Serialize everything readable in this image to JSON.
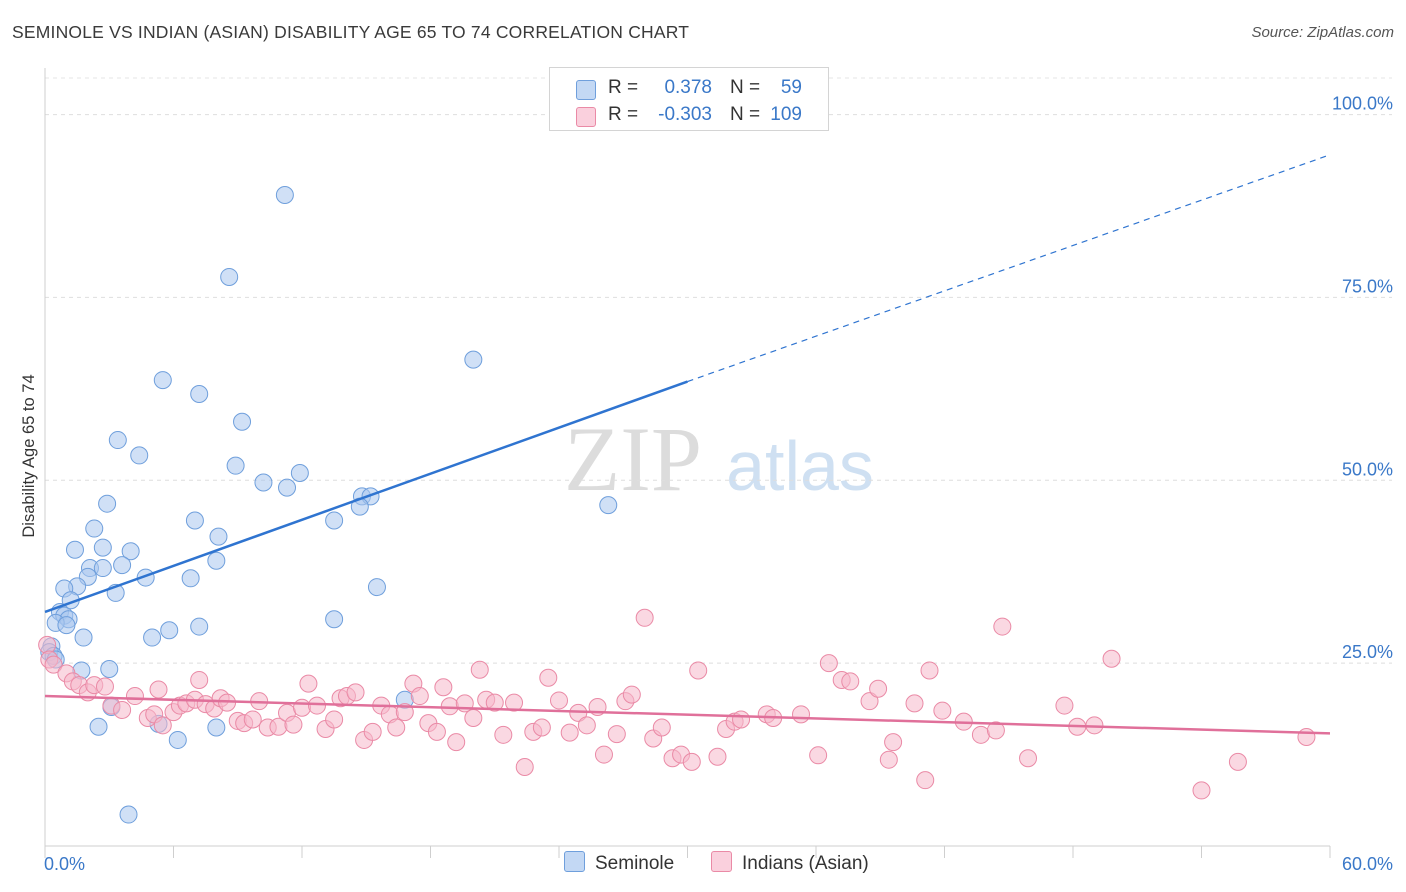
{
  "title": "SEMINOLE VS INDIAN (ASIAN) DISABILITY AGE 65 TO 74 CORRELATION CHART",
  "source": "Source: ZipAtlas.com",
  "watermark": {
    "zip": "ZIP",
    "atlas": "atlas"
  },
  "legend": {
    "r_label": "R =",
    "n_label": "N =",
    "rows": [
      {
        "r": "0.378",
        "n": "59",
        "color": "#a9c7ee"
      },
      {
        "r": "-0.303",
        "n": "109",
        "color": "#f5b8cb"
      }
    ]
  },
  "bottom_legend": [
    "Seminole",
    "Indians (Asian)"
  ],
  "chart_data": {
    "type": "scatter",
    "title": "SEMINOLE VS INDIAN (ASIAN) DISABILITY AGE 65 TO 74 CORRELATION CHART",
    "xlabel": "",
    "ylabel": "Disability Age 65 to 74",
    "xlim": [
      0,
      60
    ],
    "ylim": [
      0,
      105
    ],
    "x_tick_labels": [
      "0.0%",
      "60.0%"
    ],
    "y_tick_labels": [
      "25.0%",
      "50.0%",
      "75.0%",
      "100.0%"
    ],
    "y_ticks": [
      25,
      50,
      75,
      100
    ],
    "grid": "horizontal dashed",
    "legend_position": "top-center",
    "series": [
      {
        "name": "Seminole",
        "color": "#6f9fdc",
        "fill": "#a9c7ee",
        "R": 0.378,
        "N": 59,
        "trend": {
          "x0": 0,
          "y0": 32.0,
          "x1": 30,
          "y1": 63.5,
          "dash_to_x": 60,
          "dash_to_y": 94.5,
          "color": "#2f74d0"
        },
        "points": [
          [
            11.2,
            89.0
          ],
          [
            8.6,
            77.8
          ],
          [
            20.0,
            66.5
          ],
          [
            5.5,
            63.7
          ],
          [
            7.2,
            61.8
          ],
          [
            9.2,
            58.0
          ],
          [
            3.4,
            55.5
          ],
          [
            4.4,
            53.4
          ],
          [
            8.9,
            52.0
          ],
          [
            10.2,
            49.7
          ],
          [
            11.3,
            49.0
          ],
          [
            11.9,
            51.0
          ],
          [
            14.8,
            47.8
          ],
          [
            15.2,
            47.8
          ],
          [
            14.7,
            46.4
          ],
          [
            26.3,
            46.6
          ],
          [
            2.9,
            46.8
          ],
          [
            7.0,
            44.5
          ],
          [
            13.5,
            44.5
          ],
          [
            2.3,
            43.4
          ],
          [
            8.1,
            42.3
          ],
          [
            1.4,
            40.5
          ],
          [
            4.0,
            40.3
          ],
          [
            2.7,
            40.8
          ],
          [
            8.0,
            39.0
          ],
          [
            3.6,
            38.4
          ],
          [
            2.1,
            38.0
          ],
          [
            2.7,
            38.0
          ],
          [
            2.0,
            36.8
          ],
          [
            4.7,
            36.7
          ],
          [
            6.8,
            36.6
          ],
          [
            1.5,
            35.5
          ],
          [
            0.9,
            35.2
          ],
          [
            15.5,
            35.4
          ],
          [
            3.3,
            34.6
          ],
          [
            1.2,
            33.6
          ],
          [
            0.7,
            32.0
          ],
          [
            0.9,
            31.5
          ],
          [
            1.1,
            31.0
          ],
          [
            0.5,
            30.5
          ],
          [
            1.0,
            30.2
          ],
          [
            13.5,
            31.0
          ],
          [
            7.2,
            30.0
          ],
          [
            5.8,
            29.5
          ],
          [
            5.0,
            28.5
          ],
          [
            1.8,
            28.5
          ],
          [
            0.3,
            27.3
          ],
          [
            0.2,
            26.5
          ],
          [
            0.4,
            26.0
          ],
          [
            0.5,
            25.5
          ],
          [
            1.7,
            24.0
          ],
          [
            3.0,
            24.2
          ],
          [
            16.8,
            20.0
          ],
          [
            3.1,
            19.0
          ],
          [
            2.5,
            16.3
          ],
          [
            5.3,
            16.7
          ],
          [
            8.0,
            16.2
          ],
          [
            6.2,
            14.5
          ],
          [
            3.9,
            4.3
          ]
        ]
      },
      {
        "name": "Indians (Asian)",
        "color": "#ea8aa6",
        "fill": "#f5b8cb",
        "R": -0.303,
        "N": 109,
        "trend": {
          "x0": 0,
          "y0": 20.5,
          "x1": 60,
          "y1": 15.4,
          "color": "#e0709a"
        },
        "points": [
          [
            0.1,
            27.5
          ],
          [
            0.2,
            25.5
          ],
          [
            0.4,
            24.8
          ],
          [
            1.0,
            23.6
          ],
          [
            1.3,
            22.5
          ],
          [
            1.6,
            22.0
          ],
          [
            2.0,
            21.0
          ],
          [
            2.3,
            22.0
          ],
          [
            2.8,
            21.8
          ],
          [
            3.1,
            19.2
          ],
          [
            3.6,
            18.6
          ],
          [
            4.2,
            20.5
          ],
          [
            4.8,
            17.5
          ],
          [
            5.1,
            18.0
          ],
          [
            5.3,
            21.4
          ],
          [
            5.5,
            16.5
          ],
          [
            6.0,
            18.3
          ],
          [
            6.3,
            19.2
          ],
          [
            6.6,
            19.5
          ],
          [
            7.0,
            20.0
          ],
          [
            7.2,
            22.7
          ],
          [
            7.5,
            19.4
          ],
          [
            7.9,
            18.8
          ],
          [
            8.2,
            20.2
          ],
          [
            8.5,
            19.6
          ],
          [
            9.0,
            17.1
          ],
          [
            9.3,
            16.8
          ],
          [
            9.7,
            17.3
          ],
          [
            10.0,
            19.8
          ],
          [
            10.4,
            16.2
          ],
          [
            10.9,
            16.3
          ],
          [
            11.3,
            18.2
          ],
          [
            11.6,
            16.6
          ],
          [
            12.0,
            18.9
          ],
          [
            12.3,
            22.2
          ],
          [
            12.7,
            19.2
          ],
          [
            13.1,
            16.0
          ],
          [
            13.5,
            17.3
          ],
          [
            13.8,
            20.2
          ],
          [
            14.1,
            20.5
          ],
          [
            14.5,
            21.0
          ],
          [
            14.9,
            14.5
          ],
          [
            15.3,
            15.6
          ],
          [
            15.7,
            19.2
          ],
          [
            16.1,
            18.0
          ],
          [
            16.4,
            16.2
          ],
          [
            16.8,
            18.3
          ],
          [
            17.2,
            22.2
          ],
          [
            17.5,
            20.5
          ],
          [
            17.9,
            16.8
          ],
          [
            18.3,
            15.6
          ],
          [
            18.6,
            21.7
          ],
          [
            18.9,
            19.1
          ],
          [
            19.2,
            14.2
          ],
          [
            19.6,
            19.5
          ],
          [
            20.0,
            17.5
          ],
          [
            20.3,
            24.1
          ],
          [
            20.6,
            20.0
          ],
          [
            21.0,
            19.6
          ],
          [
            21.4,
            15.2
          ],
          [
            21.9,
            19.6
          ],
          [
            22.4,
            10.8
          ],
          [
            22.8,
            15.6
          ],
          [
            23.2,
            16.2
          ],
          [
            23.5,
            23.0
          ],
          [
            24.0,
            19.9
          ],
          [
            24.5,
            15.5
          ],
          [
            24.9,
            18.2
          ],
          [
            25.3,
            16.5
          ],
          [
            25.8,
            19.0
          ],
          [
            26.1,
            12.5
          ],
          [
            26.7,
            15.3
          ],
          [
            27.1,
            19.8
          ],
          [
            27.4,
            20.7
          ],
          [
            28.0,
            31.2
          ],
          [
            28.4,
            14.7
          ],
          [
            28.8,
            16.2
          ],
          [
            29.3,
            12.0
          ],
          [
            29.7,
            12.5
          ],
          [
            30.2,
            11.5
          ],
          [
            30.5,
            24.0
          ],
          [
            31.4,
            12.2
          ],
          [
            31.8,
            16.0
          ],
          [
            32.2,
            17.0
          ],
          [
            32.5,
            17.3
          ],
          [
            33.7,
            18.0
          ],
          [
            34.0,
            17.5
          ],
          [
            35.3,
            18.0
          ],
          [
            36.1,
            12.4
          ],
          [
            36.6,
            25.0
          ],
          [
            37.2,
            22.7
          ],
          [
            37.6,
            22.5
          ],
          [
            38.5,
            19.8
          ],
          [
            38.9,
            21.5
          ],
          [
            39.4,
            11.8
          ],
          [
            39.6,
            14.2
          ],
          [
            40.6,
            19.5
          ],
          [
            41.1,
            9.0
          ],
          [
            41.3,
            24.0
          ],
          [
            41.9,
            18.5
          ],
          [
            42.9,
            17.0
          ],
          [
            43.7,
            15.2
          ],
          [
            44.4,
            15.8
          ],
          [
            44.7,
            30.0
          ],
          [
            45.9,
            12.0
          ],
          [
            47.6,
            19.2
          ],
          [
            48.2,
            16.3
          ],
          [
            49.0,
            16.5
          ],
          [
            49.8,
            25.6
          ],
          [
            54.0,
            7.6
          ],
          [
            55.7,
            11.5
          ],
          [
            58.9,
            14.9
          ]
        ]
      }
    ]
  }
}
